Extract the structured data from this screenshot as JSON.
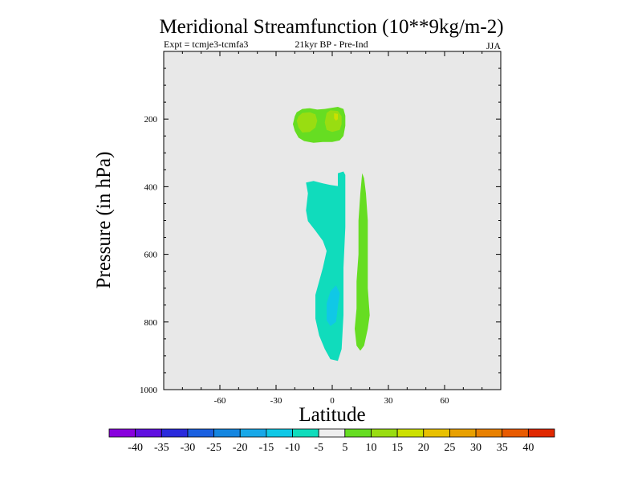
{
  "chart_data": {
    "type": "heatmap",
    "title": "Meridional Streamfunction (10**9kg/m-2)",
    "subtitle_left": "Expt = tcmje3-tcmfa3",
    "subtitle_center": "21kyr BP - Pre-Ind",
    "subtitle_right": "JJA",
    "xlabel": "Latitude",
    "ylabel": "Pressure (in hPa)",
    "xlim": [
      -90,
      90
    ],
    "ylim": [
      1000,
      0
    ],
    "x_ticks": [
      -60,
      -30,
      0,
      30,
      60
    ],
    "y_ticks": [
      200,
      400,
      600,
      800,
      1000
    ],
    "colorbar": {
      "levels": [
        -40,
        -35,
        -30,
        -25,
        -20,
        -15,
        -10,
        -5,
        5,
        10,
        15,
        20,
        25,
        30,
        35,
        40
      ],
      "colors": [
        "#8800dd",
        "#6010e0",
        "#2a2adc",
        "#1a60e0",
        "#1486e0",
        "#18a8e8",
        "#10c8e6",
        "#10dcbc",
        "#eeeeee",
        "#66dd22",
        "#99dd11",
        "#cce000",
        "#e8c000",
        "#e8a000",
        "#e88000",
        "#e85a00",
        "#e02800"
      ]
    },
    "regions": [
      {
        "value": 7.5,
        "color": "#66dd22",
        "points": [
          [
            -20,
            192
          ],
          [
            -19,
            180
          ],
          [
            -16,
            170
          ],
          [
            -12,
            168
          ],
          [
            -8,
            172
          ],
          [
            -4,
            170
          ],
          [
            3,
            164
          ],
          [
            6,
            170
          ],
          [
            7,
            190
          ],
          [
            7,
            220
          ],
          [
            6,
            250
          ],
          [
            4,
            263
          ],
          [
            0,
            268
          ],
          [
            -5,
            268
          ],
          [
            -10,
            270
          ],
          [
            -15,
            265
          ],
          [
            -18,
            255
          ],
          [
            -20,
            235
          ],
          [
            -21,
            215
          ]
        ]
      },
      {
        "value": 12.5,
        "color": "#99dd11",
        "points": [
          [
            -18,
            192
          ],
          [
            -16,
            182
          ],
          [
            -12,
            180
          ],
          [
            -9,
            186
          ],
          [
            -8,
            205
          ],
          [
            -9,
            225
          ],
          [
            -12,
            238
          ],
          [
            -16,
            240
          ],
          [
            -18,
            225
          ],
          [
            -19,
            205
          ]
        ]
      },
      {
        "value": 12.5,
        "color": "#99dd11",
        "points": [
          [
            -3,
            182
          ],
          [
            -1,
            174
          ],
          [
            3,
            176
          ],
          [
            5,
            192
          ],
          [
            5,
            215
          ],
          [
            4,
            232
          ],
          [
            0,
            238
          ],
          [
            -3,
            232
          ],
          [
            -4,
            210
          ]
        ]
      },
      {
        "value": 17.5,
        "color": "#cce000",
        "points": [
          [
            1,
            183
          ],
          [
            3,
            185
          ],
          [
            3,
            200
          ],
          [
            2,
            205
          ],
          [
            1,
            198
          ]
        ]
      },
      {
        "value": -7.5,
        "color": "#10dcbc",
        "points": [
          [
            -14,
            388
          ],
          [
            -10,
            383
          ],
          [
            -5,
            390
          ],
          [
            -1,
            395
          ],
          [
            3,
            398
          ],
          [
            3,
            360
          ],
          [
            6,
            355
          ],
          [
            7,
            365
          ],
          [
            7,
            520
          ],
          [
            6,
            640
          ],
          [
            6,
            780
          ],
          [
            5,
            880
          ],
          [
            3,
            915
          ],
          [
            -1,
            910
          ],
          [
            -4,
            880
          ],
          [
            -7,
            840
          ],
          [
            -9,
            790
          ],
          [
            -9,
            720
          ],
          [
            -5,
            640
          ],
          [
            -3,
            590
          ],
          [
            -5,
            560
          ],
          [
            -9,
            530
          ],
          [
            -13,
            502
          ],
          [
            -14,
            470
          ],
          [
            -13,
            420
          ]
        ]
      },
      {
        "value": -12.5,
        "color": "#10c8e6",
        "points": [
          [
            2,
            692
          ],
          [
            4,
            715
          ],
          [
            3,
            755
          ],
          [
            2,
            800
          ],
          [
            -1,
            812
          ],
          [
            -3,
            795
          ],
          [
            -3,
            745
          ],
          [
            -1,
            710
          ]
        ]
      },
      {
        "value": 7.5,
        "color": "#66dd22",
        "points": [
          [
            16,
            360
          ],
          [
            17,
            375
          ],
          [
            18,
            420
          ],
          [
            19,
            500
          ],
          [
            19,
            600
          ],
          [
            19,
            700
          ],
          [
            20,
            780
          ],
          [
            19,
            820
          ],
          [
            17,
            870
          ],
          [
            15,
            885
          ],
          [
            13,
            870
          ],
          [
            12,
            820
          ],
          [
            13,
            760
          ],
          [
            13,
            680
          ],
          [
            14,
            600
          ],
          [
            14,
            500
          ],
          [
            15,
            420
          ]
        ]
      }
    ]
  }
}
